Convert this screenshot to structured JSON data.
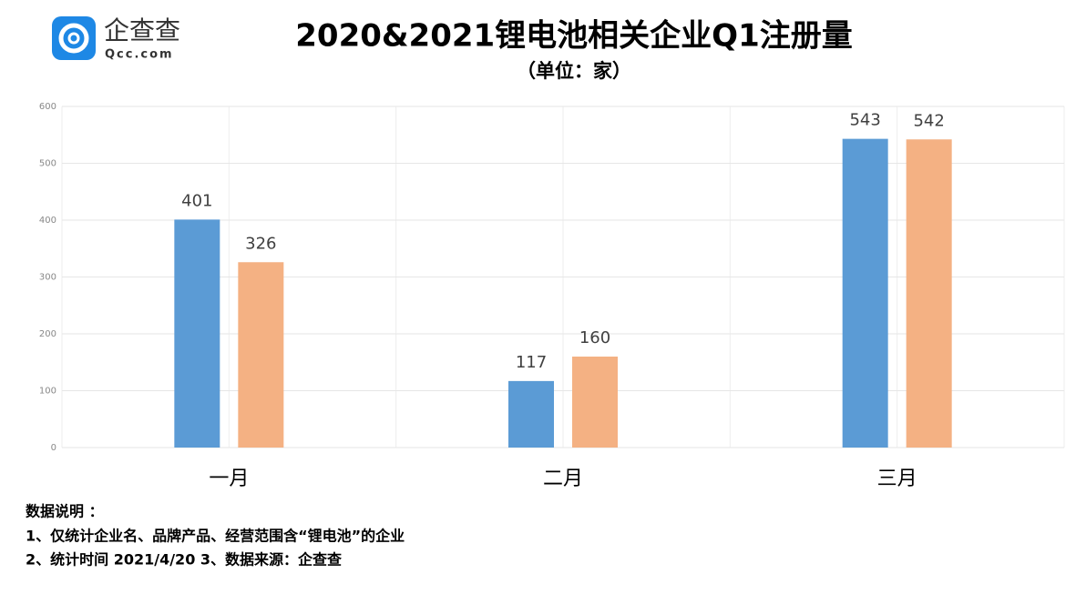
{
  "logo": {
    "name": "企查查",
    "site": "Qcc.com"
  },
  "subtitle": "（单位：家）",
  "notes": [
    "数据说明 ：",
    "1、仅统计企业名、品牌产品、经营范围含“锂电池”的企业",
    "2、统计时间 2021/4/20   3、数据来源：企查查"
  ],
  "chart_data": {
    "type": "bar",
    "title": "2020&2021锂电池相关企业Q1注册量",
    "categories": [
      "一月",
      "二月",
      "三月"
    ],
    "series": [
      {
        "color": "#5b9bd5",
        "values": [
          401,
          117,
          543
        ]
      },
      {
        "color": "#f4b183",
        "values": [
          326,
          160,
          542
        ]
      }
    ],
    "ylim": [
      0,
      600
    ],
    "yticks": [
      0,
      100,
      200,
      300,
      400,
      500,
      600
    ],
    "grid": true
  }
}
